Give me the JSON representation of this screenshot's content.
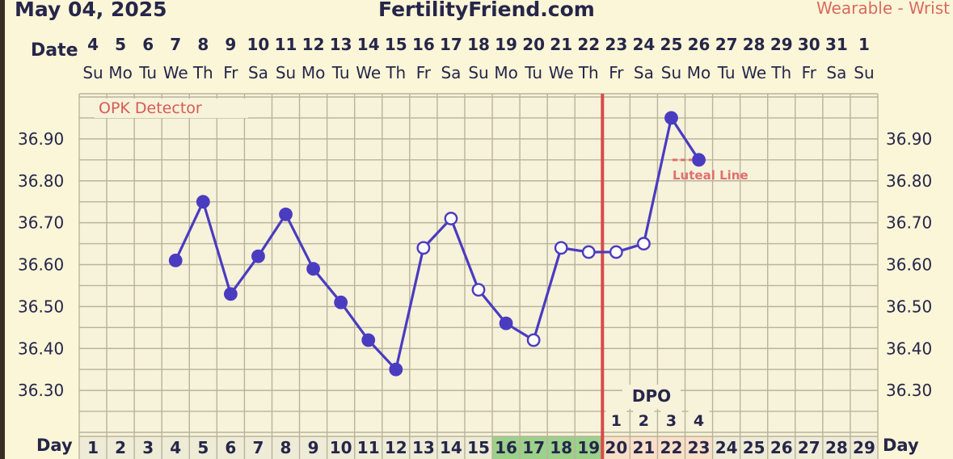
{
  "header": {
    "date": "May 04, 2025",
    "site": "FertilityFriend.com",
    "device": "Wearable - Wrist"
  },
  "labels": {
    "date_row": "Date",
    "day_row": "Day",
    "dpo": "DPO",
    "opk": "OPK Detector",
    "luteal_legend": "Luteal Line"
  },
  "colors": {
    "background": "#fbf6d8",
    "plot_bg": "#f7f2da",
    "grid": "#b9b39a",
    "line": "#4a3cc0",
    "coverline": "#e07070",
    "ovulation": "#d84a4a",
    "fertile": "#9bd18a",
    "luteal": "#f9dfc8",
    "cycleday_bg": "#eeebd6",
    "text": "#26264a"
  },
  "chart_data": {
    "type": "line",
    "ylim": [
      36.2,
      37.0
    ],
    "yticks": [
      "36.30",
      "36.40",
      "36.50",
      "36.60",
      "36.70",
      "36.80",
      "36.90"
    ],
    "cycle_days": [
      1,
      2,
      3,
      4,
      5,
      6,
      7,
      8,
      9,
      10,
      11,
      12,
      13,
      14,
      15,
      16,
      17,
      18,
      19,
      20,
      21,
      22,
      23,
      24,
      25,
      26,
      27,
      28,
      29
    ],
    "dates": [
      "4",
      "5",
      "6",
      "7",
      "8",
      "9",
      "10",
      "11",
      "12",
      "13",
      "14",
      "15",
      "16",
      "17",
      "18",
      "19",
      "20",
      "21",
      "22",
      "23",
      "24",
      "25",
      "26",
      "27",
      "28",
      "29",
      "30",
      "31",
      "1"
    ],
    "weekdays": [
      "Su",
      "Mo",
      "Tu",
      "We",
      "Th",
      "Fr",
      "Sa",
      "Su",
      "Mo",
      "Tu",
      "We",
      "Th",
      "Fr",
      "Sa",
      "Su",
      "Mo",
      "Tu",
      "We",
      "Th",
      "Fr",
      "Sa",
      "Su",
      "Mo",
      "Tu",
      "We",
      "Th",
      "Fr",
      "Sa",
      "Su"
    ],
    "temperatures": [
      {
        "day": 4,
        "temp": 36.61,
        "open": false
      },
      {
        "day": 5,
        "temp": 36.75,
        "open": false
      },
      {
        "day": 6,
        "temp": 36.53,
        "open": false
      },
      {
        "day": 7,
        "temp": 36.62,
        "open": false
      },
      {
        "day": 8,
        "temp": 36.72,
        "open": false
      },
      {
        "day": 9,
        "temp": 36.59,
        "open": false
      },
      {
        "day": 10,
        "temp": 36.51,
        "open": false
      },
      {
        "day": 11,
        "temp": 36.42,
        "open": false
      },
      {
        "day": 12,
        "temp": 36.35,
        "open": false
      },
      {
        "day": 13,
        "temp": 36.64,
        "open": true
      },
      {
        "day": 14,
        "temp": 36.71,
        "open": true
      },
      {
        "day": 15,
        "temp": 36.54,
        "open": true
      },
      {
        "day": 16,
        "temp": 36.46,
        "open": false
      },
      {
        "day": 17,
        "temp": 36.42,
        "open": true
      },
      {
        "day": 18,
        "temp": 36.64,
        "open": true
      },
      {
        "day": 19,
        "temp": 36.63,
        "open": true
      },
      {
        "day": 20,
        "temp": 36.63,
        "open": true
      },
      {
        "day": 21,
        "temp": 36.65,
        "open": true
      },
      {
        "day": 22,
        "temp": 36.95,
        "open": false
      },
      {
        "day": 23,
        "temp": 36.85,
        "open": false
      }
    ],
    "ovulation_day": 19,
    "fertile_days": [
      16,
      17,
      18,
      19
    ],
    "luteal_days": [
      20,
      21,
      22,
      23
    ],
    "dpo": [
      {
        "day": 20,
        "value": "1"
      },
      {
        "day": 21,
        "value": "2"
      },
      {
        "day": 22,
        "value": "3"
      },
      {
        "day": 23,
        "value": "4"
      }
    ],
    "coverline_temp": 36.85
  }
}
